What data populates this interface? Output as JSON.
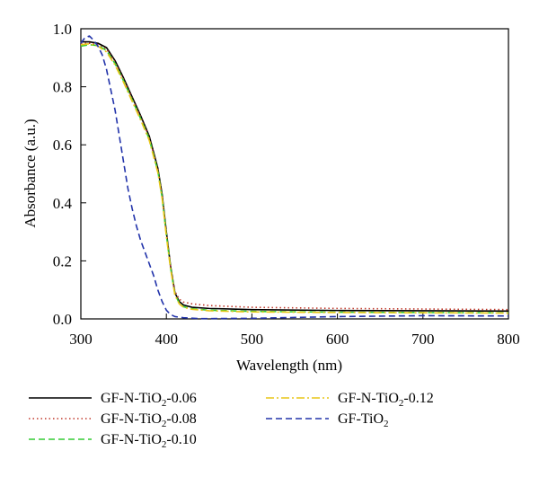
{
  "chart_data": {
    "type": "line",
    "xlabel": "Wavelength (nm)",
    "ylabel": "Absorbance (a.u.)",
    "xlim": [
      300,
      800
    ],
    "ylim": [
      0.0,
      1.0
    ],
    "xticks": [
      300,
      400,
      500,
      600,
      700,
      800
    ],
    "yticks": [
      0.0,
      0.2,
      0.4,
      0.6,
      0.8,
      1.0
    ],
    "xtick_labels": [
      "300",
      "400",
      "500",
      "600",
      "700",
      "800"
    ],
    "ytick_labels": [
      "0.0",
      "0.2",
      "0.4",
      "0.6",
      "0.8",
      "1.0"
    ],
    "grid": false,
    "legend_position": "bottom",
    "series": [
      {
        "name_parts": [
          "GF-N-TiO",
          "2",
          "-0.06"
        ],
        "color": "#000000",
        "dash": "solid",
        "x": [
          300,
          310,
          320,
          330,
          340,
          350,
          360,
          370,
          380,
          390,
          395,
          400,
          405,
          410,
          415,
          420,
          430,
          450,
          500,
          600,
          700,
          800
        ],
        "y": [
          0.955,
          0.955,
          0.95,
          0.935,
          0.89,
          0.83,
          0.765,
          0.7,
          0.63,
          0.52,
          0.43,
          0.3,
          0.18,
          0.09,
          0.06,
          0.048,
          0.04,
          0.036,
          0.032,
          0.029,
          0.028,
          0.027
        ]
      },
      {
        "name_parts": [
          "GF-N-TiO",
          "2",
          "-0.08"
        ],
        "color": "#c0392b",
        "dash": "dotted",
        "x": [
          300,
          310,
          320,
          330,
          340,
          350,
          360,
          370,
          380,
          390,
          395,
          400,
          405,
          410,
          415,
          420,
          430,
          450,
          500,
          600,
          700,
          800
        ],
        "y": [
          0.95,
          0.95,
          0.945,
          0.93,
          0.885,
          0.825,
          0.76,
          0.695,
          0.625,
          0.515,
          0.425,
          0.295,
          0.178,
          0.095,
          0.068,
          0.058,
          0.052,
          0.046,
          0.04,
          0.036,
          0.034,
          0.032
        ]
      },
      {
        "name_parts": [
          "GF-N-TiO",
          "2",
          "-0.10"
        ],
        "color": "#33cc33",
        "dash": "dashed",
        "x": [
          300,
          310,
          320,
          330,
          340,
          350,
          360,
          370,
          380,
          390,
          395,
          400,
          405,
          410,
          415,
          420,
          430,
          450,
          500,
          600,
          700,
          800
        ],
        "y": [
          0.94,
          0.945,
          0.942,
          0.925,
          0.88,
          0.82,
          0.755,
          0.69,
          0.62,
          0.51,
          0.42,
          0.29,
          0.175,
          0.085,
          0.055,
          0.042,
          0.035,
          0.03,
          0.026,
          0.023,
          0.022,
          0.021
        ]
      },
      {
        "name_parts": [
          "GF-N-TiO",
          "2",
          "-0.12"
        ],
        "color": "#e8c619",
        "dash": "dashdot",
        "x": [
          300,
          310,
          320,
          330,
          340,
          350,
          360,
          370,
          380,
          390,
          395,
          400,
          405,
          410,
          415,
          420,
          430,
          450,
          500,
          600,
          700,
          800
        ],
        "y": [
          0.945,
          0.948,
          0.94,
          0.92,
          0.875,
          0.815,
          0.75,
          0.685,
          0.615,
          0.505,
          0.415,
          0.285,
          0.17,
          0.082,
          0.052,
          0.04,
          0.033,
          0.028,
          0.024,
          0.022,
          0.021,
          0.02
        ]
      },
      {
        "name_parts": [
          "GF-TiO",
          "2",
          ""
        ],
        "color": "#2233aa",
        "dash": "dashed",
        "x": [
          300,
          305,
          310,
          315,
          320,
          325,
          330,
          335,
          340,
          345,
          350,
          355,
          360,
          365,
          370,
          375,
          380,
          385,
          390,
          395,
          400,
          405,
          410,
          420,
          440,
          500,
          600,
          700,
          800
        ],
        "y": [
          0.95,
          0.97,
          0.975,
          0.96,
          0.94,
          0.91,
          0.86,
          0.79,
          0.72,
          0.63,
          0.54,
          0.45,
          0.38,
          0.32,
          0.27,
          0.23,
          0.19,
          0.15,
          0.1,
          0.06,
          0.03,
          0.015,
          0.008,
          0.004,
          0.001,
          0.002,
          0.008,
          0.011,
          0.01
        ]
      }
    ]
  }
}
